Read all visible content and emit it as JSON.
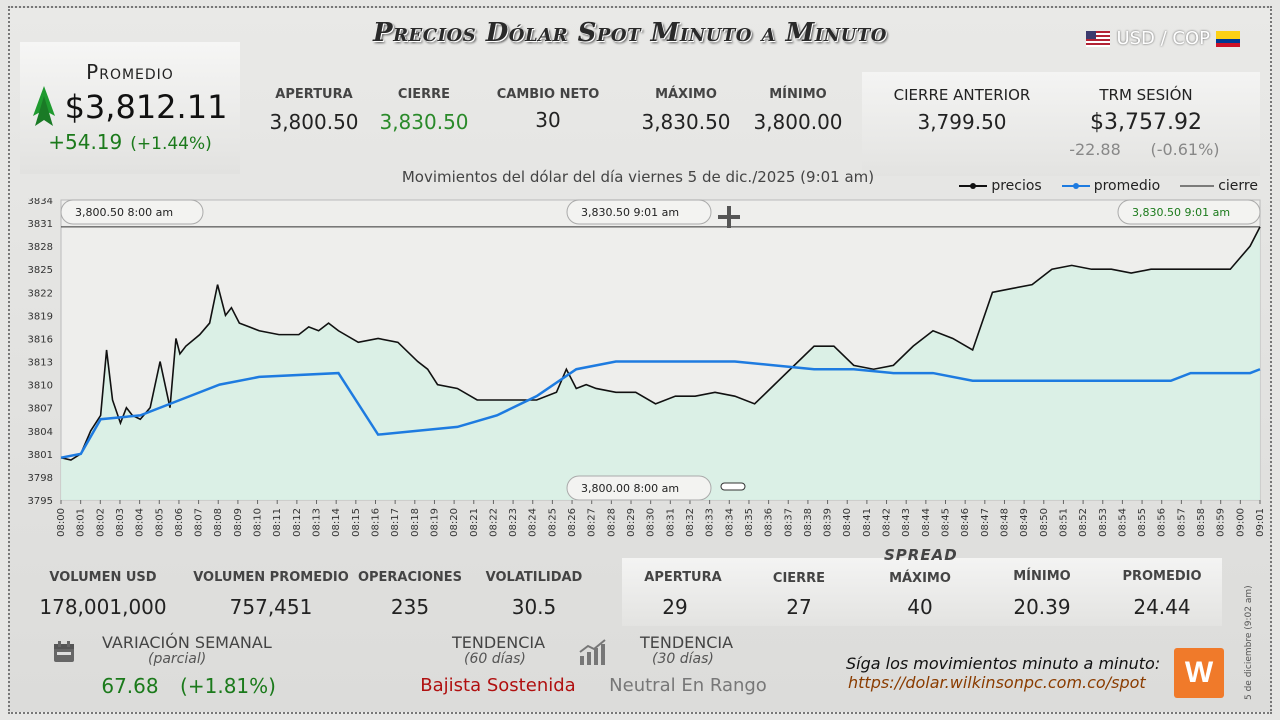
{
  "header": {
    "title": "Precios Dólar Spot Minuto a Minuto",
    "pair": "USD / COP"
  },
  "promedio": {
    "label": "Promedio",
    "value": "$3,812.11",
    "change": "+54.19",
    "change_pct": "(+1.44%)"
  },
  "stats": {
    "apertura": {
      "label": "APERTURA",
      "value": "3,800.50"
    },
    "cierre": {
      "label": "CIERRE",
      "value": "3,830.50"
    },
    "cambio_neto": {
      "label": "CAMBIO NETO",
      "value": "30"
    },
    "maximo": {
      "label": "MÁXIMO",
      "value": "3,830.50"
    },
    "minimo": {
      "label": "MÍNIMO",
      "value": "3,800.00"
    },
    "cierre_anterior": {
      "label": "CIERRE ANTERIOR",
      "value": "3,799.50"
    },
    "trm": {
      "label": "TRM SESIÓN",
      "value": "$3,757.92",
      "diff": "-22.88",
      "diff_pct": "(-0.61%)"
    }
  },
  "chart_subtitle": "Movimientos del dólar del día viernes 5 de dic./2025 (9:01 am)",
  "legend": {
    "precios": "precios",
    "promedio": "promedio",
    "cierre": "cierre"
  },
  "colors": {
    "precios": "#111111",
    "promedio": "#1e7be0",
    "area": "#d8efe6",
    "up": "#1b7a1b",
    "down": "#b01010"
  },
  "chart_data": {
    "type": "line",
    "yticks": [
      "3834",
      "3831",
      "3828",
      "3825",
      "3822",
      "3819",
      "3816",
      "3813",
      "3810",
      "3807",
      "3804",
      "3801",
      "3798",
      "3795"
    ],
    "ylim": [
      3795,
      3834
    ],
    "xticks": [
      "08:00",
      "08:01",
      "08:02",
      "08:03",
      "08:04",
      "08:05",
      "08:06",
      "08:07",
      "08:08",
      "08:09",
      "08:10",
      "08:11",
      "08:12",
      "08:13",
      "08:14",
      "08:15",
      "08:16",
      "08:17",
      "08:18",
      "08:19",
      "08:20",
      "08:21",
      "08:22",
      "08:23",
      "08:24",
      "08:25",
      "08:26",
      "08:27",
      "08:28",
      "08:29",
      "08:30",
      "08:31",
      "08:32",
      "08:33",
      "08:34",
      "08:35",
      "08:36",
      "08:37",
      "08:38",
      "08:39",
      "08:40",
      "08:41",
      "08:42",
      "08:43",
      "08:44",
      "08:45",
      "08:46",
      "08:47",
      "08:48",
      "08:49",
      "08:50",
      "08:51",
      "08:52",
      "08:53",
      "08:54",
      "08:55",
      "08:56",
      "08:57",
      "08:58",
      "08:59",
      "09:00",
      "09:01"
    ],
    "series": [
      {
        "name": "precios",
        "x": [
          0,
          0.5,
          1,
          1.5,
          2,
          2.3,
          2.6,
          3,
          3.3,
          3.6,
          4,
          4.5,
          5,
          5.5,
          5.8,
          6,
          6.3,
          7,
          7.5,
          7.9,
          8,
          8.3,
          8.6,
          9,
          9.5,
          10,
          11,
          12,
          12.5,
          13,
          13.5,
          14,
          15,
          16,
          17,
          18,
          18.5,
          19,
          20,
          21,
          22,
          23,
          24,
          25,
          25.5,
          26,
          26.5,
          27,
          28,
          29,
          30,
          31,
          32,
          33,
          34,
          35,
          36,
          37,
          38,
          39,
          40,
          41,
          42,
          43,
          44,
          45,
          46,
          47,
          48,
          49,
          50,
          51,
          52,
          53,
          54,
          55,
          56,
          57,
          58,
          59,
          60,
          60.5
        ],
        "y": [
          3800.5,
          3800.2,
          3801,
          3804,
          3806,
          3814.5,
          3808,
          3805,
          3807,
          3806,
          3805.5,
          3807,
          3813,
          3807,
          3816,
          3814,
          3815,
          3816.5,
          3818,
          3823,
          3822,
          3819,
          3820,
          3818,
          3817.5,
          3817,
          3816.5,
          3816.5,
          3817.5,
          3817,
          3818,
          3817,
          3815.5,
          3816,
          3815.5,
          3813,
          3812,
          3810,
          3809.5,
          3808,
          3808,
          3808,
          3808,
          3809,
          3812,
          3809.5,
          3810,
          3809.5,
          3809,
          3809,
          3807.5,
          3808.5,
          3808.5,
          3809,
          3808.5,
          3807.5,
          3810,
          3812.5,
          3815,
          3815,
          3812.5,
          3812,
          3812.5,
          3815,
          3817,
          3816,
          3814.5,
          3822,
          3822.5,
          3823,
          3825,
          3825.5,
          3825,
          3825,
          3824.5,
          3825,
          3825,
          3825,
          3825,
          3825,
          3828,
          3830.5
        ]
      },
      {
        "name": "promedio",
        "x": [
          0,
          1,
          2,
          4,
          6,
          8,
          10,
          14,
          16,
          18,
          20,
          22,
          24,
          26,
          28,
          30,
          32,
          34,
          36,
          38,
          40,
          42,
          44,
          46,
          48,
          50,
          52,
          54,
          56,
          57,
          58,
          60,
          60.5
        ],
        "y": [
          3800.5,
          3801,
          3805.5,
          3806,
          3808,
          3810,
          3811,
          3811.5,
          3803.5,
          3804,
          3804.5,
          3806,
          3808.5,
          3812,
          3813,
          3813,
          3813,
          3813,
          3812.5,
          3812,
          3812,
          3811.5,
          3811.5,
          3810.5,
          3810.5,
          3810.5,
          3810.5,
          3810.5,
          3810.5,
          3811.5,
          3811.5,
          3811.5,
          3812
        ]
      }
    ],
    "cierre_line": 3830.5,
    "annotations": [
      {
        "text": "3,800.50  8:00 am"
      },
      {
        "text": "3,830.50  9:01 am"
      },
      {
        "text": "3,830.50  9:01 am"
      },
      {
        "text": "3,800.00  8:00 am"
      }
    ]
  },
  "bottom": {
    "volumen_usd": {
      "label": "VOLUMEN USD",
      "value": "178,001,000"
    },
    "volumen_promedio": {
      "label": "VOLUMEN PROMEDIO",
      "value": "757,451"
    },
    "operaciones": {
      "label": "OPERACIONES",
      "value": "235"
    },
    "volatilidad": {
      "label": "VOLATILIDAD",
      "value": "30.5"
    }
  },
  "spread": {
    "title": "SPREAD",
    "apertura": {
      "label": "APERTURA",
      "value": "29"
    },
    "cierre": {
      "label": "CIERRE",
      "value": "27"
    },
    "maximo": {
      "label": "MÁXIMO",
      "value": "40"
    },
    "minimo": {
      "label": "MÍNIMO",
      "value": "20.39"
    },
    "promedio": {
      "label": "PROMEDIO",
      "value": "24.44"
    }
  },
  "variacion": {
    "label": "VARIACIÓN SEMANAL",
    "sub": "(parcial)",
    "value": "67.68",
    "pct": "(+1.81%)"
  },
  "tendencia60": {
    "label": "TENDENCIA",
    "sub": "(60 días)",
    "value": "Bajista Sostenida"
  },
  "tendencia30": {
    "label": "TENDENCIA",
    "sub": "(30 días)",
    "value": "Neutral En Rango"
  },
  "footer": {
    "follow": "Síga los movimientos minuto a minuto:",
    "url": "https://dolar.wilkinsonpc.com.co/spot",
    "logo": "W",
    "side_date": "5 de diciembre (9:02 am)"
  }
}
